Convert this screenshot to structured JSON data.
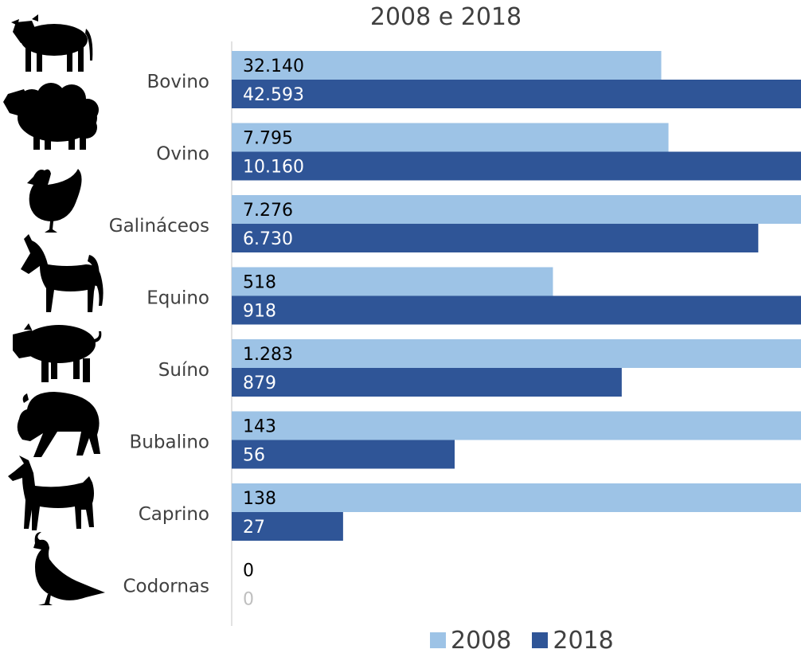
{
  "chart_data": {
    "type": "bar",
    "orientation": "horizontal",
    "title": "2008 e 2018",
    "categories": [
      "Bovino",
      "Ovino",
      "Galináceos",
      "Equino",
      "Suíno",
      "Bubalino",
      "Caprino",
      "Codornas"
    ],
    "series": [
      {
        "name": "2008",
        "color": "#9dc3e6",
        "values": [
          32140,
          7795,
          7276,
          518,
          1283,
          143,
          138,
          0
        ],
        "labels": [
          "32.140",
          "7.795",
          "7.276",
          "518",
          "1.283",
          "143",
          "138",
          "0"
        ]
      },
      {
        "name": "2018",
        "color": "#2f5597",
        "values": [
          42593,
          10160,
          6730,
          918,
          879,
          56,
          27,
          0
        ],
        "labels": [
          "42.593",
          "10.160",
          "6.730",
          "918",
          "879",
          "56",
          "27",
          "0"
        ]
      }
    ],
    "icons": [
      "cow-icon",
      "sheep-icon",
      "chicken-icon",
      "horse-icon",
      "pig-icon",
      "buffalo-icon",
      "goat-icon",
      "quail-icon"
    ],
    "legend_position": "bottom",
    "grid": false
  }
}
